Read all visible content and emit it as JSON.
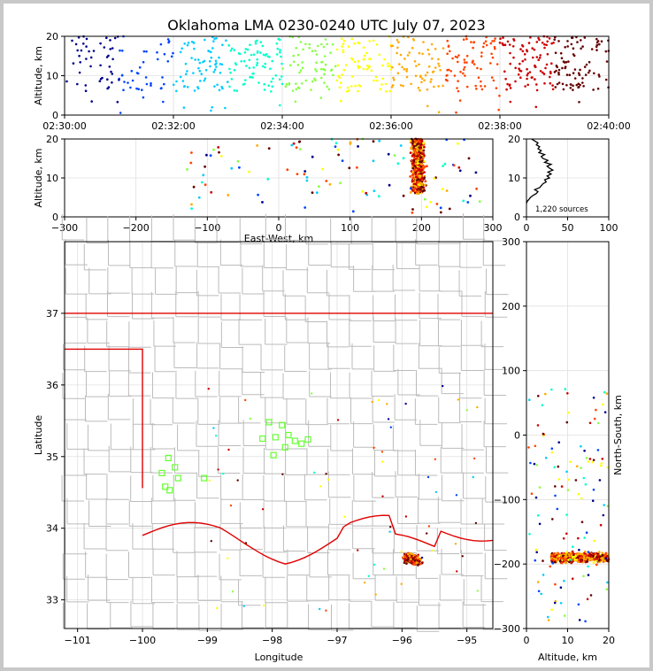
{
  "title": "Oklahoma LMA 0230-0240 UTC July 07, 2023",
  "source_count_label": "1,220 sources",
  "chart_data": [
    {
      "id": "time-altitude",
      "type": "scatter",
      "ylabel": "Altitude, km",
      "xlim": [
        "02:30:00",
        "02:40:00"
      ],
      "ylim": [
        0,
        20
      ],
      "x_ticks": [
        "02:30:00",
        "02:32:00",
        "02:34:00",
        "02:36:00",
        "02:38:00",
        "02:40:00"
      ],
      "y_ticks": [
        "0",
        "10",
        "20"
      ],
      "color_by": "time",
      "colormap": [
        "#00008b",
        "#0044ff",
        "#00ccff",
        "#00ffcc",
        "#88ff44",
        "#ffff00",
        "#ffaa00",
        "#ff4400",
        "#cc0000",
        "#660000"
      ]
    },
    {
      "id": "ew-altitude",
      "type": "scatter",
      "xlabel": "East-West, km",
      "ylabel": "Altitude, km",
      "xlim": [
        -300,
        300
      ],
      "ylim": [
        0,
        20
      ],
      "x_ticks": [
        "−300",
        "−200",
        "−100",
        "0",
        "100",
        "200",
        "300"
      ],
      "y_ticks": [
        "0",
        "10",
        "20"
      ],
      "dominant_cluster": {
        "x_center": 195,
        "x_spread": 12,
        "z_range": [
          6,
          20
        ]
      }
    },
    {
      "id": "altitude-histogram",
      "type": "line",
      "xlim": [
        0,
        100
      ],
      "ylim": [
        0,
        20
      ],
      "x_ticks": [
        "0",
        "50",
        "100"
      ],
      "y_ticks": [
        "0",
        "10",
        "20"
      ],
      "profile": [
        [
          0,
          3.5
        ],
        [
          1,
          4
        ],
        [
          3,
          4.5
        ],
        [
          5,
          5
        ],
        [
          8,
          5.5
        ],
        [
          12,
          6
        ],
        [
          14,
          6.5
        ],
        [
          10,
          7
        ],
        [
          16,
          7.5
        ],
        [
          18,
          8
        ],
        [
          20,
          8.5
        ],
        [
          24,
          9
        ],
        [
          22,
          9.5
        ],
        [
          28,
          10
        ],
        [
          25,
          10.5
        ],
        [
          30,
          11
        ],
        [
          26,
          11.5
        ],
        [
          32,
          12
        ],
        [
          28,
          12.5
        ],
        [
          25,
          13
        ],
        [
          30,
          13.5
        ],
        [
          22,
          14
        ],
        [
          26,
          14.5
        ],
        [
          20,
          15
        ],
        [
          18,
          15.5
        ],
        [
          22,
          16
        ],
        [
          15,
          16.5
        ],
        [
          18,
          17
        ],
        [
          14,
          17.5
        ],
        [
          16,
          18
        ],
        [
          12,
          18.5
        ],
        [
          14,
          19
        ],
        [
          10,
          19.5
        ],
        [
          6,
          20
        ]
      ]
    },
    {
      "id": "plan-view",
      "type": "scatter",
      "xlabel": "Longitude",
      "ylabel": "Latitude",
      "xlim": [
        -101.2,
        -94.6
      ],
      "ylim": [
        32.6,
        38.0
      ],
      "x_ticks": [
        "−101",
        "−100",
        "−99",
        "−98",
        "−97",
        "−96",
        "−95"
      ],
      "y_ticks": [
        "33",
        "34",
        "35",
        "36",
        "37"
      ],
      "dominant_cluster": {
        "lon_center": -95.85,
        "lat_center": 33.57
      },
      "stations": [
        [
          -99.6,
          34.98
        ],
        [
          -99.5,
          34.85
        ],
        [
          -99.45,
          34.7
        ],
        [
          -99.7,
          34.77
        ],
        [
          -99.65,
          34.58
        ],
        [
          -99.58,
          34.53
        ],
        [
          -99.05,
          34.7
        ],
        [
          -98.05,
          35.48
        ],
        [
          -97.85,
          35.44
        ],
        [
          -98.15,
          35.25
        ],
        [
          -97.95,
          35.27
        ],
        [
          -97.75,
          35.3
        ],
        [
          -97.65,
          35.22
        ],
        [
          -97.55,
          35.18
        ],
        [
          -97.45,
          35.24
        ],
        [
          -97.8,
          35.13
        ],
        [
          -97.98,
          35.02
        ]
      ]
    },
    {
      "id": "altitude-ns",
      "type": "scatter",
      "xlabel": "Altitude, km",
      "ylabel": "North-South, km",
      "xlim": [
        0,
        20
      ],
      "ylim": [
        -300,
        300
      ],
      "x_ticks": [
        "0",
        "10",
        "20"
      ],
      "y_ticks": [
        "−300",
        "−200",
        "−100",
        "0",
        "100",
        "200",
        "300"
      ],
      "dominant_cluster": {
        "y_center": -190,
        "y_spread": 10,
        "z_range": [
          6,
          20
        ]
      }
    }
  ]
}
